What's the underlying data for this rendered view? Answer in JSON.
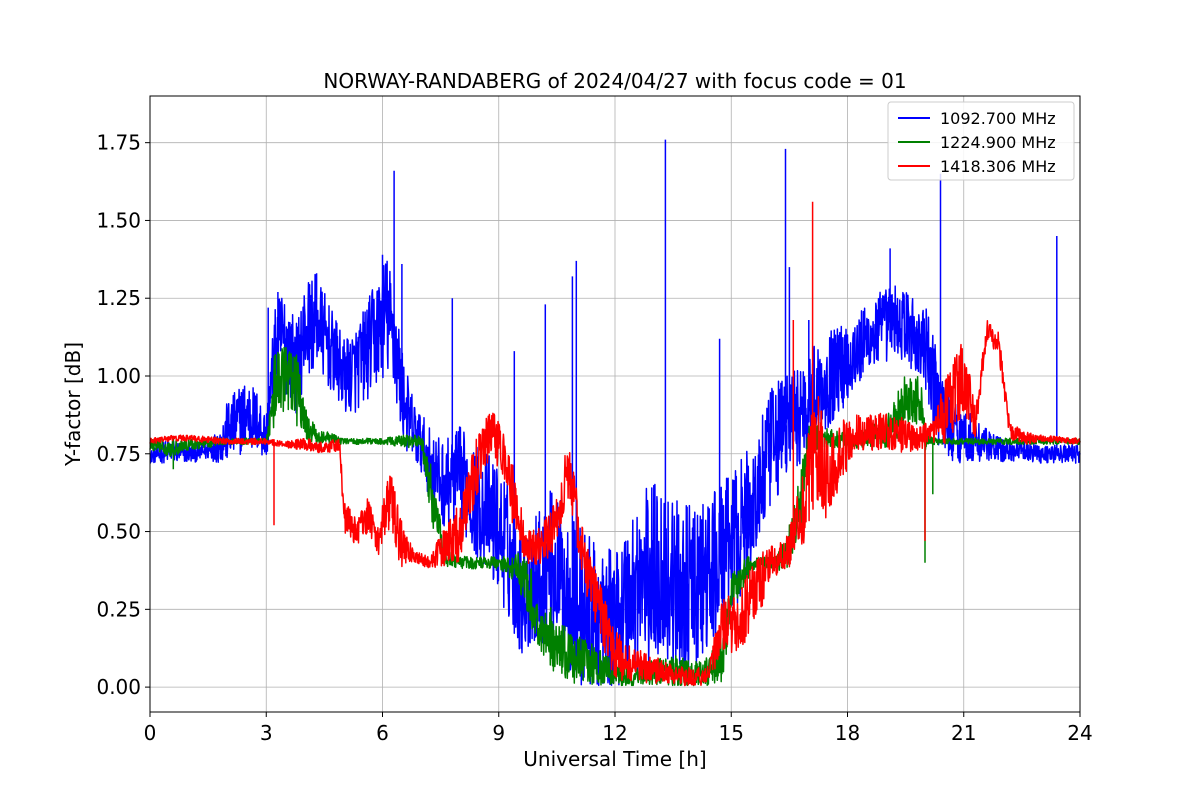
{
  "chart_data": {
    "type": "line",
    "title": "NORWAY-RANDABERG of 2024/04/27 with focus code = 01",
    "xlabel": "Universal Time [h]",
    "ylabel": "Y-factor [dB]",
    "xlim": [
      0,
      24
    ],
    "ylim": [
      -0.08,
      1.9
    ],
    "xticks": [
      0,
      3,
      6,
      9,
      12,
      15,
      18,
      21,
      24
    ],
    "xtick_labels": [
      "0",
      "3",
      "6",
      "9",
      "12",
      "15",
      "18",
      "21",
      "24"
    ],
    "yticks": [
      0.0,
      0.25,
      0.5,
      0.75,
      1.0,
      1.25,
      1.5,
      1.75
    ],
    "ytick_labels": [
      "0.00",
      "0.25",
      "0.50",
      "0.75",
      "1.00",
      "1.25",
      "1.50",
      "1.75"
    ],
    "grid": true,
    "legend_position": "top-right",
    "series": [
      {
        "name": "1092.700 MHz",
        "color": "#0000ff",
        "x": [
          0,
          0.5,
          1,
          1.5,
          1.8,
          2,
          2.5,
          2.8,
          3,
          3.2,
          3.4,
          3.6,
          3.8,
          4,
          4.3,
          4.6,
          5,
          5.3,
          5.6,
          5.9,
          6.1,
          6.3,
          6.5,
          6.7,
          7,
          7.3,
          7.6,
          8,
          8.4,
          8.8,
          9.2,
          9.6,
          10,
          10.4,
          10.8,
          11.2,
          11.6,
          12,
          12.4,
          12.8,
          13.2,
          13.6,
          14,
          14.4,
          14.8,
          15.2,
          15.6,
          16,
          16.4,
          16.8,
          17.2,
          17.6,
          18,
          18.4,
          18.8,
          19.2,
          19.6,
          20,
          20.4,
          20.8,
          21.2,
          21.6,
          22,
          22.5,
          23,
          23.5,
          24
        ],
        "y": [
          0.74,
          0.76,
          0.75,
          0.76,
          0.78,
          0.82,
          0.88,
          0.85,
          0.8,
          1.05,
          1.12,
          1.08,
          1.02,
          1.15,
          1.18,
          1.1,
          1.0,
          1.02,
          1.08,
          1.15,
          1.2,
          1.12,
          0.95,
          0.85,
          0.78,
          0.7,
          0.65,
          0.68,
          0.6,
          0.55,
          0.45,
          0.3,
          0.35,
          0.4,
          0.3,
          0.25,
          0.2,
          0.22,
          0.3,
          0.35,
          0.38,
          0.32,
          0.3,
          0.35,
          0.42,
          0.5,
          0.6,
          0.75,
          0.85,
          0.88,
          0.95,
          1.0,
          1.05,
          1.1,
          1.15,
          1.18,
          1.15,
          1.08,
          0.9,
          0.82,
          0.8,
          0.78,
          0.76,
          0.76,
          0.75,
          0.75,
          0.75
        ],
        "amp": [
          0.02,
          0.04,
          0.03,
          0.03,
          0.06,
          0.1,
          0.12,
          0.1,
          0.08,
          0.15,
          0.18,
          0.16,
          0.15,
          0.16,
          0.15,
          0.14,
          0.12,
          0.14,
          0.16,
          0.18,
          0.2,
          0.18,
          0.15,
          0.12,
          0.1,
          0.12,
          0.14,
          0.16,
          0.18,
          0.2,
          0.22,
          0.2,
          0.22,
          0.25,
          0.25,
          0.28,
          0.25,
          0.22,
          0.28,
          0.3,
          0.3,
          0.28,
          0.28,
          0.26,
          0.24,
          0.22,
          0.2,
          0.2,
          0.18,
          0.16,
          0.16,
          0.15,
          0.14,
          0.12,
          0.12,
          0.12,
          0.12,
          0.15,
          0.15,
          0.1,
          0.08,
          0.05,
          0.04,
          0.03,
          0.03,
          0.03,
          0.03
        ],
        "spikes": [
          [
            3.05,
            1.22
          ],
          [
            3.3,
            1.27
          ],
          [
            4.3,
            1.33
          ],
          [
            6.0,
            1.39
          ],
          [
            6.3,
            1.66
          ],
          [
            6.5,
            1.36
          ],
          [
            7.8,
            1.25
          ],
          [
            9.4,
            1.08
          ],
          [
            10.2,
            1.23
          ],
          [
            10.9,
            1.32
          ],
          [
            11.0,
            1.37
          ],
          [
            13.3,
            1.76
          ],
          [
            13.3,
            1.66
          ],
          [
            14.7,
            1.12
          ],
          [
            16.4,
            1.73
          ],
          [
            16.5,
            1.35
          ],
          [
            17.0,
            1.18
          ],
          [
            19.1,
            1.41
          ],
          [
            20.4,
            1.65
          ],
          [
            20.4,
            1.35
          ],
          [
            23.4,
            1.45
          ]
        ]
      },
      {
        "name": "1224.900 MHz",
        "color": "#008000",
        "x": [
          0,
          0.5,
          1,
          2,
          3,
          3.2,
          3.5,
          3.8,
          4,
          4.3,
          4.6,
          5,
          5.5,
          6,
          6.5,
          7,
          7.3,
          7.6,
          8,
          8.5,
          9,
          9.5,
          9.8,
          10,
          10.4,
          10.8,
          11.2,
          11.6,
          12,
          12.4,
          12.8,
          13.2,
          13.6,
          14,
          14.4,
          14.8,
          15,
          15.4,
          15.8,
          16,
          16.4,
          16.8,
          17,
          17.5,
          18,
          18.5,
          19,
          19.3,
          19.6,
          19.9,
          20,
          20.2,
          20.5,
          21,
          22,
          23,
          24
        ],
        "y": [
          0.78,
          0.77,
          0.78,
          0.79,
          0.79,
          0.95,
          1.0,
          0.95,
          0.85,
          0.8,
          0.8,
          0.79,
          0.79,
          0.79,
          0.79,
          0.79,
          0.6,
          0.42,
          0.4,
          0.4,
          0.4,
          0.38,
          0.3,
          0.2,
          0.15,
          0.1,
          0.08,
          0.06,
          0.04,
          0.03,
          0.04,
          0.05,
          0.05,
          0.04,
          0.05,
          0.1,
          0.3,
          0.38,
          0.4,
          0.4,
          0.42,
          0.6,
          0.8,
          0.8,
          0.79,
          0.8,
          0.82,
          0.88,
          0.95,
          0.92,
          0.8,
          0.79,
          0.79,
          0.79,
          0.79,
          0.79,
          0.79
        ],
        "amp": [
          0.02,
          0.03,
          0.02,
          0.01,
          0.01,
          0.12,
          0.1,
          0.12,
          0.05,
          0.03,
          0.02,
          0.01,
          0.01,
          0.01,
          0.02,
          0.02,
          0.1,
          0.03,
          0.02,
          0.02,
          0.02,
          0.05,
          0.1,
          0.1,
          0.1,
          0.08,
          0.08,
          0.06,
          0.04,
          0.03,
          0.04,
          0.05,
          0.05,
          0.04,
          0.05,
          0.08,
          0.06,
          0.04,
          0.02,
          0.02,
          0.05,
          0.1,
          0.05,
          0.03,
          0.03,
          0.03,
          0.05,
          0.08,
          0.1,
          0.08,
          0.04,
          0.01,
          0.01,
          0.01,
          0.01,
          0.01,
          0.01
        ],
        "spikes": [
          [
            0.6,
            0.7
          ],
          [
            20.0,
            0.4
          ],
          [
            20.2,
            0.62
          ]
        ]
      },
      {
        "name": "1418.306 MHz",
        "color": "#ff0000",
        "x": [
          0,
          0.5,
          1,
          2,
          3,
          3.5,
          4,
          4.5,
          4.9,
          5,
          5.3,
          5.6,
          5.9,
          6.2,
          6.5,
          6.8,
          7.2,
          7.6,
          8,
          8.4,
          8.8,
          9.1,
          9.4,
          9.7,
          10,
          10.4,
          10.8,
          11.2,
          11.6,
          12,
          12.4,
          12.8,
          13.2,
          13.6,
          14,
          14.4,
          14.8,
          15.2,
          15.6,
          16,
          16.4,
          16.8,
          17.2,
          17.5,
          17.8,
          18.2,
          18.6,
          19,
          19.4,
          19.8,
          20.2,
          20.6,
          21,
          21.3,
          21.6,
          21.9,
          22.2,
          22.6,
          23,
          24
        ],
        "y": [
          0.79,
          0.8,
          0.8,
          0.79,
          0.79,
          0.78,
          0.78,
          0.77,
          0.78,
          0.55,
          0.5,
          0.55,
          0.48,
          0.6,
          0.45,
          0.42,
          0.4,
          0.45,
          0.5,
          0.7,
          0.82,
          0.75,
          0.6,
          0.45,
          0.45,
          0.5,
          0.7,
          0.4,
          0.25,
          0.1,
          0.08,
          0.06,
          0.05,
          0.04,
          0.03,
          0.04,
          0.2,
          0.2,
          0.3,
          0.4,
          0.42,
          0.55,
          0.8,
          0.65,
          0.75,
          0.82,
          0.82,
          0.82,
          0.81,
          0.8,
          0.82,
          0.9,
          1.0,
          0.85,
          1.15,
          1.1,
          0.82,
          0.8,
          0.8,
          0.79
        ],
        "amp": [
          0.01,
          0.01,
          0.01,
          0.01,
          0.01,
          0.01,
          0.02,
          0.02,
          0.02,
          0.05,
          0.05,
          0.06,
          0.06,
          0.1,
          0.08,
          0.02,
          0.02,
          0.06,
          0.1,
          0.1,
          0.08,
          0.08,
          0.1,
          0.05,
          0.06,
          0.08,
          0.1,
          0.08,
          0.1,
          0.08,
          0.06,
          0.05,
          0.04,
          0.03,
          0.03,
          0.03,
          0.1,
          0.1,
          0.12,
          0.06,
          0.05,
          0.12,
          0.2,
          0.12,
          0.12,
          0.06,
          0.06,
          0.06,
          0.06,
          0.04,
          0.04,
          0.12,
          0.12,
          0.05,
          0.03,
          0.04,
          0.03,
          0.02,
          0.01,
          0.01
        ],
        "spikes": [
          [
            3.2,
            0.52
          ],
          [
            17.1,
            1.56
          ],
          [
            16.6,
            1.18
          ],
          [
            20.0,
            0.47
          ]
        ]
      }
    ]
  }
}
